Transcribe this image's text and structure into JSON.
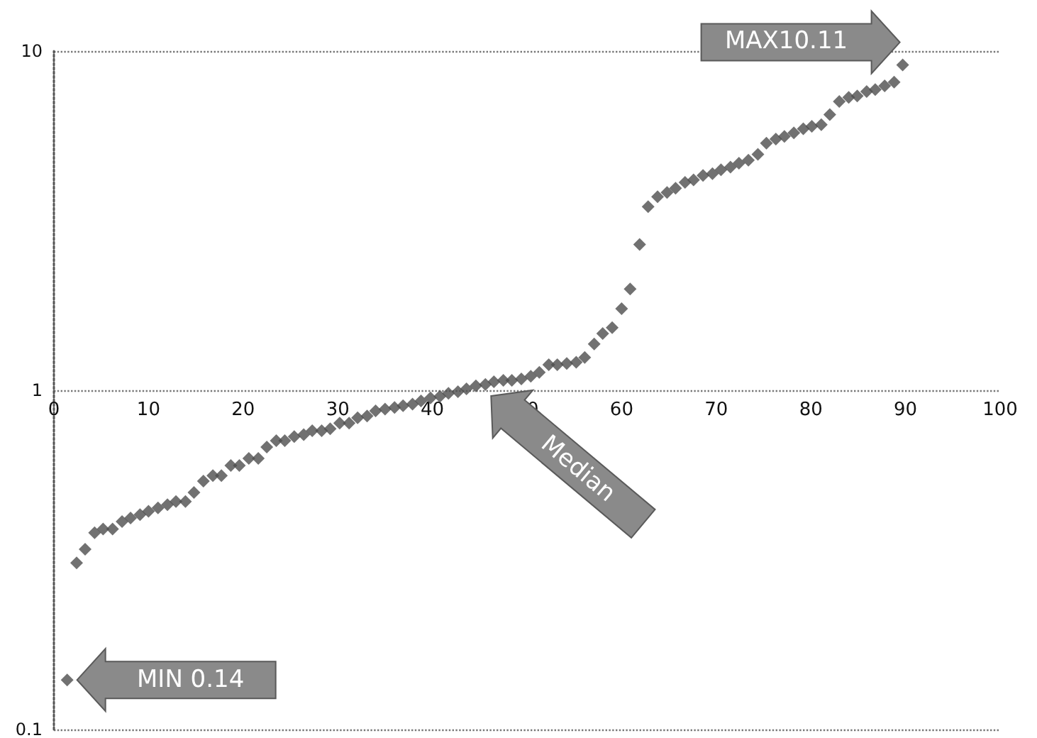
{
  "chart_data": {
    "type": "scatter",
    "marker": "diamond",
    "grid": "y",
    "log": "y",
    "xlim": [
      0,
      100
    ],
    "xticks": [
      0,
      10,
      20,
      30,
      40,
      50,
      60,
      70,
      80,
      90,
      100
    ],
    "ylim": [
      0.1,
      10
    ],
    "yticks": [
      0.1,
      1,
      10
    ],
    "x": [
      1.4,
      2.4,
      3.3,
      4.3,
      5.2,
      6.2,
      7.2,
      8.1,
      9.1,
      10.0,
      11.0,
      12.0,
      12.9,
      13.9,
      14.8,
      15.8,
      16.8,
      17.7,
      18.7,
      19.6,
      20.6,
      21.6,
      22.5,
      23.5,
      24.4,
      25.4,
      26.4,
      27.3,
      28.3,
      29.2,
      30.2,
      31.2,
      32.1,
      33.1,
      34.0,
      35.0,
      36.0,
      36.9,
      37.9,
      38.8,
      39.8,
      40.8,
      41.7,
      42.7,
      43.6,
      44.6,
      45.6,
      46.5,
      47.5,
      48.4,
      49.4,
      50.4,
      51.3,
      52.3,
      53.2,
      54.2,
      55.2,
      56.1,
      57.1,
      58.0,
      59.0,
      60.0,
      60.9,
      61.9,
      62.8,
      63.8,
      64.8,
      65.7,
      66.7,
      67.6,
      68.6,
      69.6,
      70.5,
      71.5,
      72.4,
      73.4,
      74.4,
      75.3,
      76.3,
      77.2,
      78.2,
      79.2,
      80.1,
      81.1,
      82.0,
      83.0,
      84.0,
      84.9,
      85.9,
      86.8,
      87.8,
      88.8,
      89.7
    ],
    "series": [
      {
        "color": "#4d4d4d",
        "values": [
          0.14,
          0.31,
          0.34,
          0.38,
          0.39,
          0.39,
          0.41,
          0.42,
          0.43,
          0.44,
          0.45,
          0.46,
          0.47,
          0.47,
          0.5,
          0.54,
          0.56,
          0.56,
          0.6,
          0.6,
          0.63,
          0.63,
          0.68,
          0.71,
          0.71,
          0.73,
          0.74,
          0.76,
          0.76,
          0.77,
          0.8,
          0.8,
          0.83,
          0.84,
          0.87,
          0.88,
          0.89,
          0.9,
          0.91,
          0.93,
          0.95,
          0.96,
          0.98,
          0.99,
          1.01,
          1.03,
          1.04,
          1.06,
          1.07,
          1.07,
          1.08,
          1.1,
          1.13,
          1.19,
          1.19,
          1.2,
          1.21,
          1.25,
          1.37,
          1.47,
          1.53,
          1.74,
          1.99,
          2.69,
          3.48,
          3.72,
          3.83,
          3.94,
          4.1,
          4.17,
          4.3,
          4.35,
          4.47,
          4.55,
          4.67,
          4.77,
          4.96,
          5.35,
          5.5,
          5.6,
          5.74,
          5.9,
          6.0,
          6.07,
          6.5,
          7.1,
          7.3,
          7.37,
          7.6,
          7.7,
          7.9,
          8.1,
          9.1
        ]
      }
    ],
    "annotations": [
      {
        "text": "MAX10.11",
        "x": 89.7,
        "y": 9.1
      },
      {
        "text": "MIN 0.14",
        "x": 1.4,
        "y": 0.14
      },
      {
        "text": "Median",
        "x": 45.6,
        "y": 1.06
      }
    ]
  }
}
